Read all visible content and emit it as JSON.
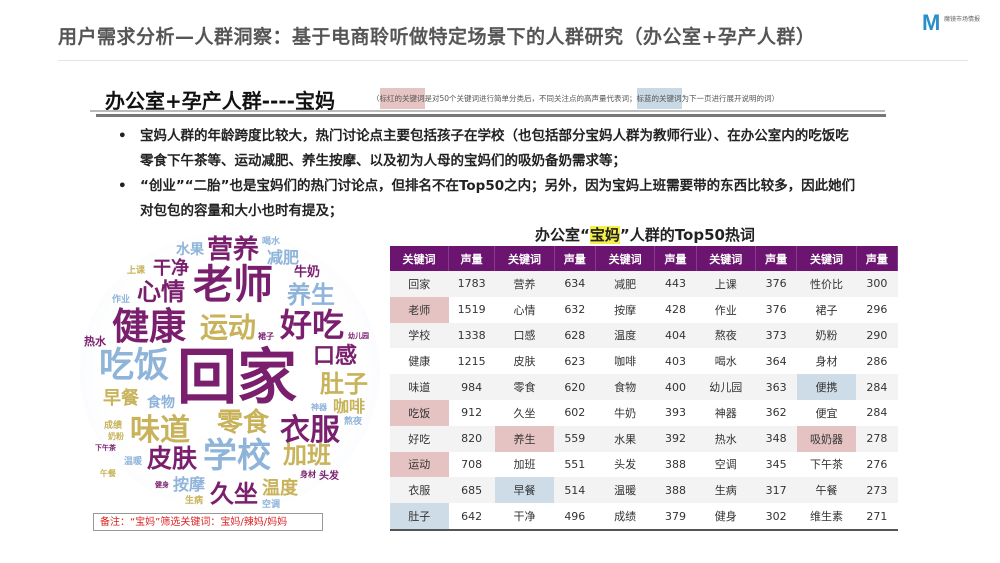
{
  "header": {
    "title": "用户需求分析—人群洞察：基于电商聆听做特定场景下的人群研究（办公室+孕产人群）",
    "logo_text": "M",
    "logo_label": "魔镜市场情报"
  },
  "section": {
    "heading": "办公室+孕产人群----宝妈",
    "note_prefix": "（",
    "note_pink": "标红的关键词",
    "note_middle": "是对50个关键词进行简单分类后，不同关注点的高声量代表词；",
    "note_blue": "标蓝的关键词",
    "note_suffix": "为下一页进行展开说明的词）"
  },
  "bullets": [
    "宝妈人群的年龄跨度比较大，热门讨论点主要包括孩子在学校（也包括部分宝妈人群为教师行业）、在办公室内的吃饭吃零食下午茶等、运动减肥、养生按摩、以及初为人母的宝妈们的吸奶备奶需求等；",
    "“创业”“二胎”也是宝妈们的热门讨论点，但排名不在Top50之内；另外，因为宝妈上班需要带的东西比较多，因此她们对包包的容量和大小也时有提及；"
  ],
  "colors": {
    "purple": "#7a1f6e",
    "gold": "#c8b25a",
    "blue": "#8fb4da",
    "header_bg": "#6b1470",
    "highlight_pink": "#e6c3c3",
    "highlight_blue": "#cddce7",
    "note_red": "#dd2222"
  },
  "cloud": {
    "words": [
      {
        "text": "回家"
      },
      {
        "text": "老师"
      },
      {
        "text": "健康"
      },
      {
        "text": "运动"
      },
      {
        "text": "好吃"
      },
      {
        "text": "吃饭"
      },
      {
        "text": "口感"
      },
      {
        "text": "肚子"
      },
      {
        "text": "早餐"
      },
      {
        "text": "食物"
      },
      {
        "text": "味道"
      },
      {
        "text": "零食"
      },
      {
        "text": "衣服"
      },
      {
        "text": "咖啡"
      },
      {
        "text": "学校"
      },
      {
        "text": "皮肤"
      },
      {
        "text": "加班"
      },
      {
        "text": "按摩"
      },
      {
        "text": "久坐"
      },
      {
        "text": "温度"
      },
      {
        "text": "营养"
      },
      {
        "text": "干净"
      },
      {
        "text": "水果"
      },
      {
        "text": "减肥"
      },
      {
        "text": "心情"
      },
      {
        "text": "养生"
      },
      {
        "text": "牛奶"
      },
      {
        "text": "热水"
      },
      {
        "text": "喝水"
      },
      {
        "text": "上课"
      },
      {
        "text": "作业"
      },
      {
        "text": "裙子"
      },
      {
        "text": "幼儿园"
      },
      {
        "text": "神器"
      },
      {
        "text": "熬夜"
      },
      {
        "text": "下午茶"
      },
      {
        "text": "午餐"
      },
      {
        "text": "身材"
      },
      {
        "text": "成绩"
      },
      {
        "text": "奶粉"
      },
      {
        "text": "温暖"
      },
      {
        "text": "空调"
      },
      {
        "text": "头发"
      },
      {
        "text": "健身"
      },
      {
        "text": "生病"
      }
    ],
    "footnote": "备注：“宝妈”筛选关键词：宝妈/辣妈/妈妈"
  },
  "table": {
    "title_prefix": "办公室“",
    "title_highlight": "宝妈",
    "title_suffix": "”人群的Top50热词",
    "headers": [
      "关键词",
      "声量",
      "关键词",
      "声量",
      "关键词",
      "声量",
      "关键词",
      "声量",
      "关键词",
      "声量"
    ],
    "rows": [
      [
        {
          "k": "回家",
          "v": 1783
        },
        {
          "k": "营养",
          "v": 634
        },
        {
          "k": "减肥",
          "v": 443
        },
        {
          "k": "上课",
          "v": 376
        },
        {
          "k": "性价比",
          "v": 300
        }
      ],
      [
        {
          "k": "老师",
          "v": 1519,
          "hl": "pink"
        },
        {
          "k": "心情",
          "v": 632
        },
        {
          "k": "按摩",
          "v": 428
        },
        {
          "k": "作业",
          "v": 376
        },
        {
          "k": "裙子",
          "v": 296
        }
      ],
      [
        {
          "k": "学校",
          "v": 1338
        },
        {
          "k": "口感",
          "v": 628
        },
        {
          "k": "温度",
          "v": 404
        },
        {
          "k": "熬夜",
          "v": 373
        },
        {
          "k": "奶粉",
          "v": 290
        }
      ],
      [
        {
          "k": "健康",
          "v": 1215
        },
        {
          "k": "皮肤",
          "v": 623
        },
        {
          "k": "咖啡",
          "v": 403
        },
        {
          "k": "喝水",
          "v": 364
        },
        {
          "k": "身材",
          "v": 286
        }
      ],
      [
        {
          "k": "味道",
          "v": 984
        },
        {
          "k": "零食",
          "v": 620
        },
        {
          "k": "食物",
          "v": 400
        },
        {
          "k": "幼儿园",
          "v": 363
        },
        {
          "k": "便携",
          "v": 284,
          "hl": "blue"
        }
      ],
      [
        {
          "k": "吃饭",
          "v": 912,
          "hl": "pink"
        },
        {
          "k": "久坐",
          "v": 602
        },
        {
          "k": "牛奶",
          "v": 393
        },
        {
          "k": "神器",
          "v": 362
        },
        {
          "k": "便宜",
          "v": 284
        }
      ],
      [
        {
          "k": "好吃",
          "v": 820
        },
        {
          "k": "养生",
          "v": 559,
          "hl": "pink"
        },
        {
          "k": "水果",
          "v": 392
        },
        {
          "k": "热水",
          "v": 348
        },
        {
          "k": "吸奶器",
          "v": 278,
          "hl": "pink"
        }
      ],
      [
        {
          "k": "运动",
          "v": 708,
          "hl": "pink"
        },
        {
          "k": "加班",
          "v": 551
        },
        {
          "k": "头发",
          "v": 388
        },
        {
          "k": "空调",
          "v": 345
        },
        {
          "k": "下午茶",
          "v": 276
        }
      ],
      [
        {
          "k": "衣服",
          "v": 685
        },
        {
          "k": "早餐",
          "v": 514,
          "hl": "blue"
        },
        {
          "k": "温暖",
          "v": 388
        },
        {
          "k": "生病",
          "v": 317
        },
        {
          "k": "午餐",
          "v": 273
        }
      ],
      [
        {
          "k": "肚子",
          "v": 642,
          "hl": "blue"
        },
        {
          "k": "干净",
          "v": 496
        },
        {
          "k": "成绩",
          "v": 379
        },
        {
          "k": "健身",
          "v": 302
        },
        {
          "k": "维生素",
          "v": 271
        }
      ]
    ]
  }
}
